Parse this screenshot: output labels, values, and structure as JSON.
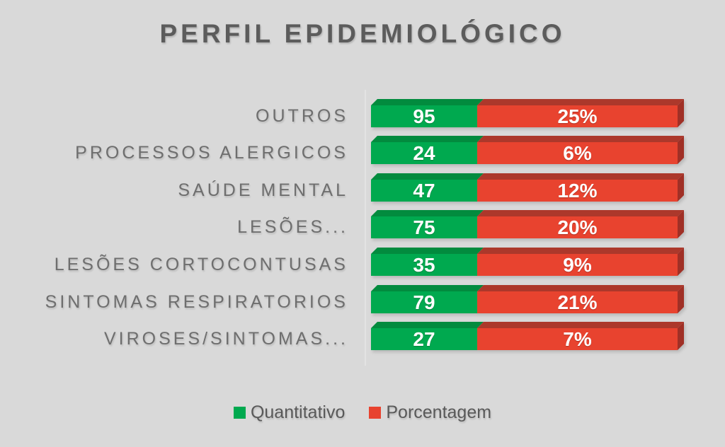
{
  "slide": {
    "title": "PERFIL EPIDEMIOLÓGICO",
    "background": "#D9D9D9"
  },
  "chart_data": {
    "type": "bar",
    "subtype": "horizontal-stacked-3d",
    "title": "PERFIL EPIDEMIOLÓGICO",
    "categories": [
      "OUTROS",
      "PROCESSOS ALERGICOS",
      "SAÚDE MENTAL",
      "LESÕES...",
      "LESÕES CORTOCONTUSAS",
      "SINTOMAS RESPIRATORIOS",
      "VIROSES/SINTOMAS..."
    ],
    "series": [
      {
        "name": "Quantitativo",
        "color": "#00A94F",
        "color_top": "#028B3E",
        "values": [
          95,
          24,
          47,
          75,
          35,
          79,
          27
        ],
        "data_labels": [
          "95",
          "24",
          "47",
          "75",
          "35",
          "79",
          "27"
        ]
      },
      {
        "name": "Porcentagem",
        "color": "#E8432F",
        "color_top": "#AC382B",
        "color_side": "#A03026",
        "values": [
          25,
          6,
          12,
          20,
          9,
          21,
          7
        ],
        "data_labels": [
          "25%",
          "6%",
          "12%",
          "20%",
          "9%",
          "21%",
          "7%"
        ]
      }
    ],
    "data_label_color": "#FFFFFF",
    "legend_position": "bottom",
    "layout": {
      "gridlines": false,
      "green_fraction": 0.3464,
      "bars_equal_length": true
    }
  },
  "legend": {
    "items": [
      {
        "label": "Quantitativo"
      },
      {
        "label": "Porcentagem"
      }
    ]
  }
}
